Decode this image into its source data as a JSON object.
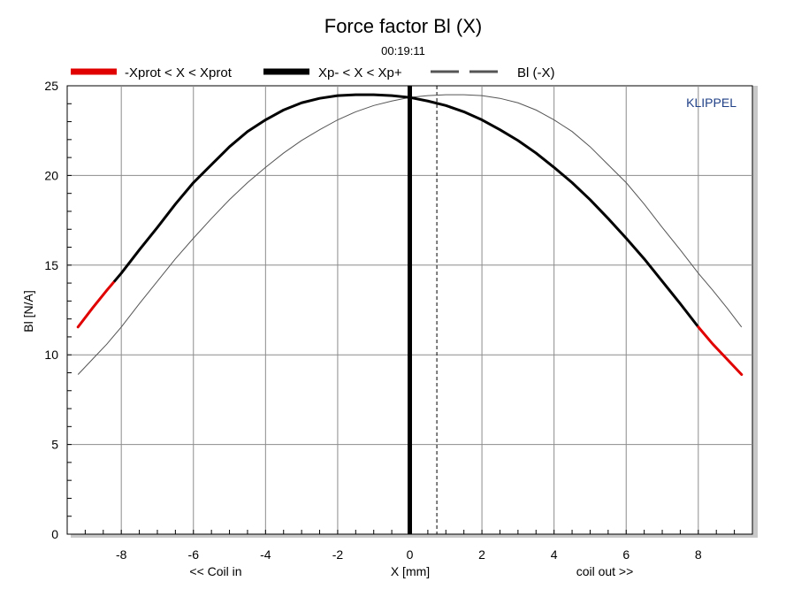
{
  "chart_data": {
    "type": "line",
    "title": "Force factor Bl (X)",
    "subtitle": "00:19:11",
    "xlabel": "X [mm]",
    "ylabel": "Bl [N/A]",
    "x_left_note": "<< Coil in",
    "x_right_note": "coil out >>",
    "brand": "KLIPPEL",
    "xlim": [
      -9.5,
      9.5
    ],
    "ylim": [
      0,
      25
    ],
    "xticks": [
      -8,
      -6,
      -4,
      -2,
      0,
      2,
      4,
      6,
      8
    ],
    "yticks": [
      0,
      5,
      10,
      15,
      20,
      25
    ],
    "grid": true,
    "legend_position": "top",
    "legend": [
      {
        "label": "-Xprot < X < Xprot",
        "color": "#e00000",
        "style": "solid-thick"
      },
      {
        "label": "Xp- < X < Xp+",
        "color": "#000000",
        "style": "solid-thick"
      },
      {
        "label": "Bl (-X)",
        "color": "#555555",
        "style": "dashed"
      }
    ],
    "vertical_markers": [
      {
        "x": 0,
        "style": "solid-thick",
        "color": "#000000"
      },
      {
        "x": 0.75,
        "style": "dashed",
        "color": "#000000"
      }
    ],
    "xp_range": [
      -8.2,
      8.0
    ],
    "series": [
      {
        "name": "Bl (X)",
        "color_inside": "#000000",
        "color_outside": "#e00000",
        "x": [
          -9.2,
          -8.8,
          -8.4,
          -8,
          -7.5,
          -7,
          -6.5,
          -6,
          -5.5,
          -5,
          -4.5,
          -4,
          -3.5,
          -3,
          -2.5,
          -2,
          -1.5,
          -1,
          -0.5,
          0,
          0.5,
          1,
          1.5,
          2,
          2.5,
          3,
          3.5,
          4,
          4.5,
          5,
          5.5,
          6,
          6.5,
          7,
          7.5,
          8,
          8.4,
          8.8,
          9.2
        ],
        "y": [
          11.55,
          12.6,
          13.6,
          14.55,
          15.85,
          17.1,
          18.4,
          19.6,
          20.6,
          21.6,
          22.45,
          23.1,
          23.65,
          24.05,
          24.3,
          24.45,
          24.5,
          24.5,
          24.45,
          24.35,
          24.15,
          23.9,
          23.55,
          23.1,
          22.55,
          21.95,
          21.25,
          20.45,
          19.6,
          18.65,
          17.6,
          16.5,
          15.35,
          14.1,
          12.85,
          11.55,
          10.6,
          9.75,
          8.9
        ]
      },
      {
        "name": "Bl (-X)",
        "color": "#555555",
        "x": [
          -9.2,
          -8.8,
          -8.4,
          -8,
          -7.5,
          -7,
          -6.5,
          -6,
          -5.5,
          -5,
          -4.5,
          -4,
          -3.5,
          -3,
          -2.5,
          -2,
          -1.5,
          -1,
          -0.5,
          0,
          0.5,
          1,
          1.5,
          2,
          2.5,
          3,
          3.5,
          4,
          4.5,
          5,
          5.5,
          6,
          6.5,
          7,
          7.5,
          8,
          8.4,
          8.8,
          9.2
        ],
        "y": [
          8.9,
          9.75,
          10.6,
          11.55,
          12.85,
          14.1,
          15.35,
          16.5,
          17.6,
          18.65,
          19.6,
          20.45,
          21.25,
          21.95,
          22.55,
          23.1,
          23.55,
          23.9,
          24.15,
          24.35,
          24.45,
          24.5,
          24.5,
          24.45,
          24.3,
          24.05,
          23.65,
          23.1,
          22.45,
          21.6,
          20.6,
          19.6,
          18.4,
          17.1,
          15.85,
          14.55,
          13.6,
          12.6,
          11.55
        ]
      }
    ]
  }
}
